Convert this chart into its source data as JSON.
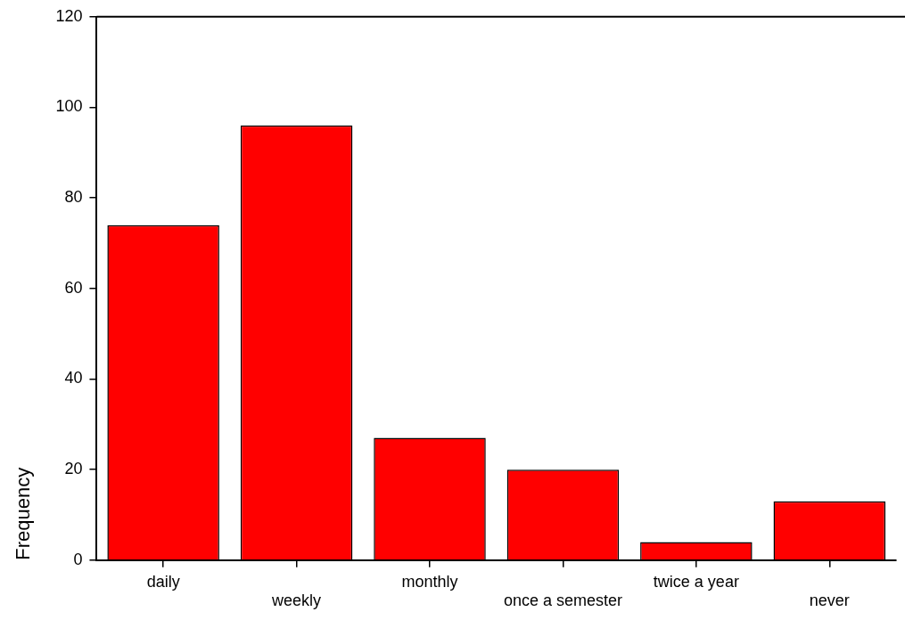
{
  "chart_data": {
    "type": "bar",
    "ylabel": "Frequency",
    "categories": [
      "daily",
      "weekly",
      "monthly",
      "once a semester",
      "twice a year",
      "never"
    ],
    "values": [
      74,
      96,
      27,
      20,
      4,
      13
    ],
    "color": "#ff0000",
    "ylim": [
      0,
      120
    ],
    "yticks": [
      0,
      20,
      40,
      60,
      80,
      100,
      120
    ]
  }
}
